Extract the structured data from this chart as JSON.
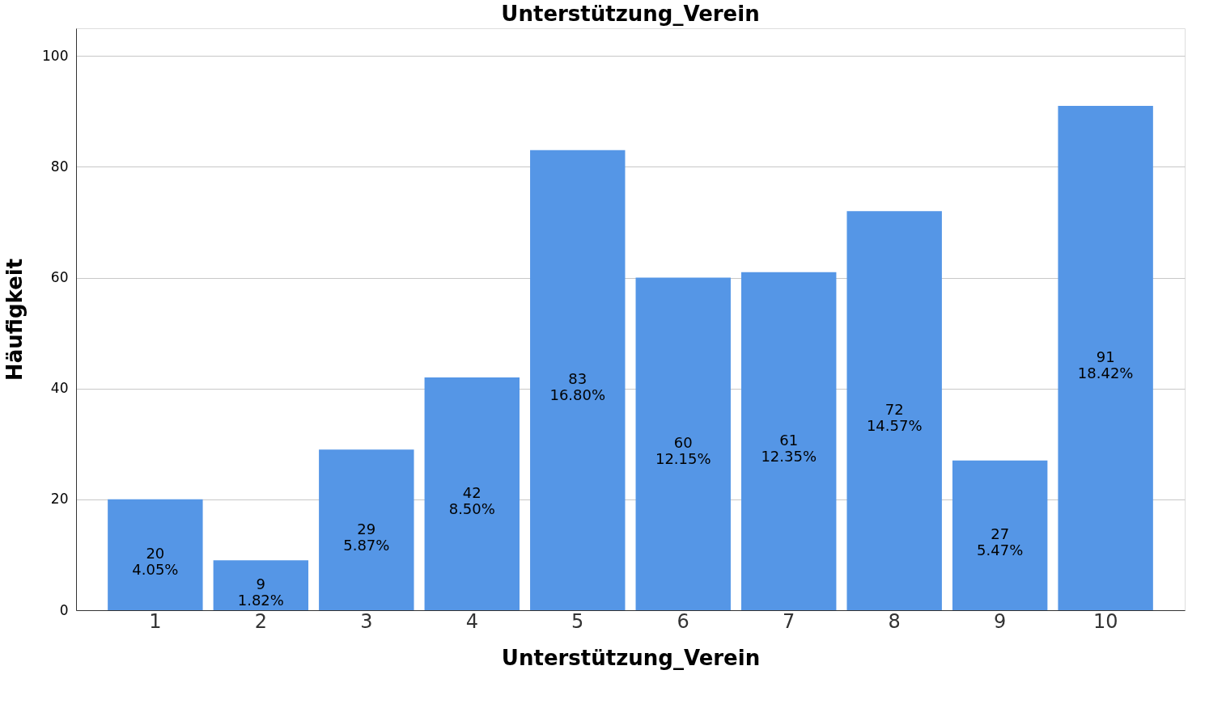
{
  "chart_data": {
    "type": "bar",
    "title": "Unterstützung_Verein",
    "xlabel": "Unterstützung_Verein",
    "ylabel": "Häufigkeit",
    "categories": [
      "1",
      "2",
      "3",
      "4",
      "5",
      "6",
      "7",
      "8",
      "9",
      "10"
    ],
    "values": [
      20,
      9,
      29,
      42,
      83,
      60,
      61,
      72,
      27,
      91
    ],
    "value_labels": [
      "20\n4.05%",
      "9\n1.82%",
      "29\n5.87%",
      "42\n8.50%",
      "83\n16.80%",
      "60\n12.15%",
      "61\n12.35%",
      "72\n14.57%",
      "27\n5.47%",
      "91\n18.42%"
    ],
    "color": "#5596e6",
    "ylim": [
      0,
      105
    ],
    "yticks": [
      0,
      20,
      40,
      60,
      80,
      100
    ],
    "grid": "y"
  }
}
